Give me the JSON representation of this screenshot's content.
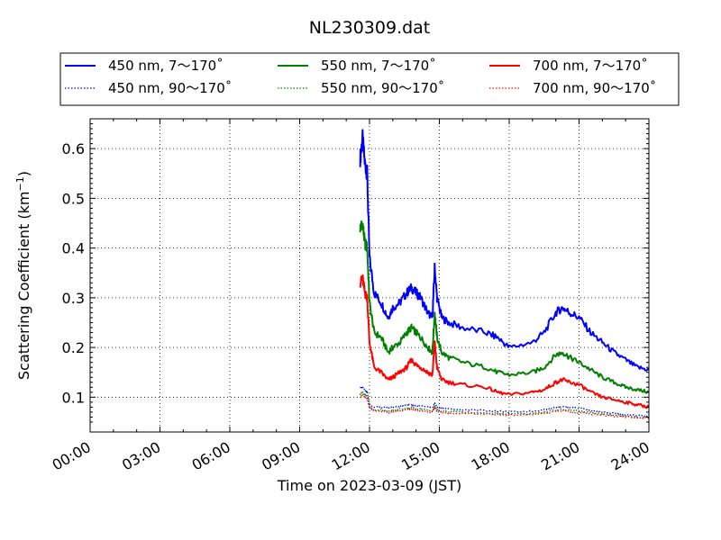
{
  "chart_data": {
    "type": "line",
    "title": "NL230309.dat",
    "xlabel": "Time on 2023-03-09 (JST)",
    "ylabel_main": "Scattering Coefficient (km",
    "ylabel_sup": "−1",
    "ylabel_close": ")",
    "xlim": [
      "00:00",
      "24:00"
    ],
    "ylim": [
      0.03,
      0.66
    ],
    "grid": true,
    "legend": "top, above plot, 3 columns",
    "x_ticks": [
      "00:00",
      "03:00",
      "06:00",
      "09:00",
      "12:00",
      "15:00",
      "18:00",
      "21:00",
      "24:00"
    ],
    "y_ticks": [
      "0.1",
      "0.2",
      "0.3",
      "0.4",
      "0.5",
      "0.6"
    ],
    "y_tick_values": [
      0.1,
      0.2,
      0.3,
      0.4,
      0.5,
      0.6
    ],
    "x_hours": [
      11.6,
      11.7,
      11.8,
      11.9,
      12.0,
      12.2,
      12.5,
      12.8,
      13.0,
      13.3,
      13.6,
      13.8,
      14.0,
      14.2,
      14.5,
      14.7,
      14.8,
      14.9,
      15.1,
      15.4,
      16.0,
      17.0,
      17.5,
      18.0,
      19.0,
      19.5,
      20.0,
      20.3,
      20.6,
      21.0,
      21.5,
      22.0,
      22.5,
      23.0,
      23.5,
      24.0
    ],
    "series": [
      {
        "name": "450 nm, 7～170˚",
        "color": "#0000ff",
        "style": "solid",
        "values": [
          0.58,
          0.62,
          0.57,
          0.55,
          0.38,
          0.31,
          0.29,
          0.26,
          0.28,
          0.29,
          0.31,
          0.32,
          0.31,
          0.3,
          0.27,
          0.26,
          0.36,
          0.3,
          0.26,
          0.25,
          0.24,
          0.23,
          0.22,
          0.2,
          0.21,
          0.23,
          0.27,
          0.28,
          0.27,
          0.26,
          0.23,
          0.21,
          0.19,
          0.175,
          0.16,
          0.155
        ]
      },
      {
        "name": "550 nm, 7～170˚",
        "color": "#008000",
        "style": "solid",
        "values": [
          0.44,
          0.45,
          0.41,
          0.4,
          0.29,
          0.23,
          0.22,
          0.19,
          0.2,
          0.21,
          0.23,
          0.24,
          0.23,
          0.22,
          0.2,
          0.19,
          0.27,
          0.22,
          0.19,
          0.18,
          0.17,
          0.16,
          0.15,
          0.145,
          0.15,
          0.16,
          0.185,
          0.19,
          0.18,
          0.17,
          0.155,
          0.14,
          0.13,
          0.12,
          0.115,
          0.11
        ]
      },
      {
        "name": "700 nm, 7～170˚",
        "color": "#ff0000",
        "style": "solid",
        "values": [
          0.33,
          0.34,
          0.31,
          0.3,
          0.21,
          0.16,
          0.15,
          0.135,
          0.14,
          0.15,
          0.16,
          0.175,
          0.165,
          0.16,
          0.15,
          0.145,
          0.21,
          0.16,
          0.135,
          0.13,
          0.125,
          0.12,
          0.11,
          0.105,
          0.11,
          0.115,
          0.13,
          0.135,
          0.13,
          0.125,
          0.11,
          0.1,
          0.095,
          0.09,
          0.085,
          0.08
        ]
      },
      {
        "name": "450 nm, 90～170˚",
        "color": "#0000ff",
        "style": "dotted",
        "values": [
          0.12,
          0.12,
          0.115,
          0.11,
          0.085,
          0.08,
          0.08,
          0.078,
          0.08,
          0.082,
          0.085,
          0.085,
          0.083,
          0.082,
          0.08,
          0.078,
          0.09,
          0.08,
          0.078,
          0.076,
          0.075,
          0.073,
          0.072,
          0.07,
          0.072,
          0.075,
          0.08,
          0.082,
          0.08,
          0.078,
          0.074,
          0.07,
          0.067,
          0.065,
          0.063,
          0.062
        ]
      },
      {
        "name": "550 nm, 90～170˚",
        "color": "#008000",
        "style": "dotted",
        "values": [
          0.105,
          0.11,
          0.105,
          0.1,
          0.08,
          0.075,
          0.075,
          0.072,
          0.074,
          0.076,
          0.078,
          0.079,
          0.077,
          0.076,
          0.074,
          0.072,
          0.083,
          0.074,
          0.072,
          0.071,
          0.07,
          0.068,
          0.067,
          0.066,
          0.067,
          0.07,
          0.074,
          0.076,
          0.074,
          0.072,
          0.069,
          0.066,
          0.064,
          0.062,
          0.06,
          0.059
        ]
      },
      {
        "name": "700 nm, 90～170˚",
        "color": "#ff0000",
        "style": "dotted",
        "values": [
          0.1,
          0.105,
          0.1,
          0.096,
          0.078,
          0.072,
          0.072,
          0.069,
          0.071,
          0.073,
          0.075,
          0.076,
          0.074,
          0.073,
          0.071,
          0.07,
          0.08,
          0.071,
          0.069,
          0.068,
          0.067,
          0.066,
          0.065,
          0.064,
          0.065,
          0.067,
          0.071,
          0.073,
          0.071,
          0.069,
          0.066,
          0.064,
          0.062,
          0.06,
          0.059,
          0.058
        ]
      }
    ]
  }
}
